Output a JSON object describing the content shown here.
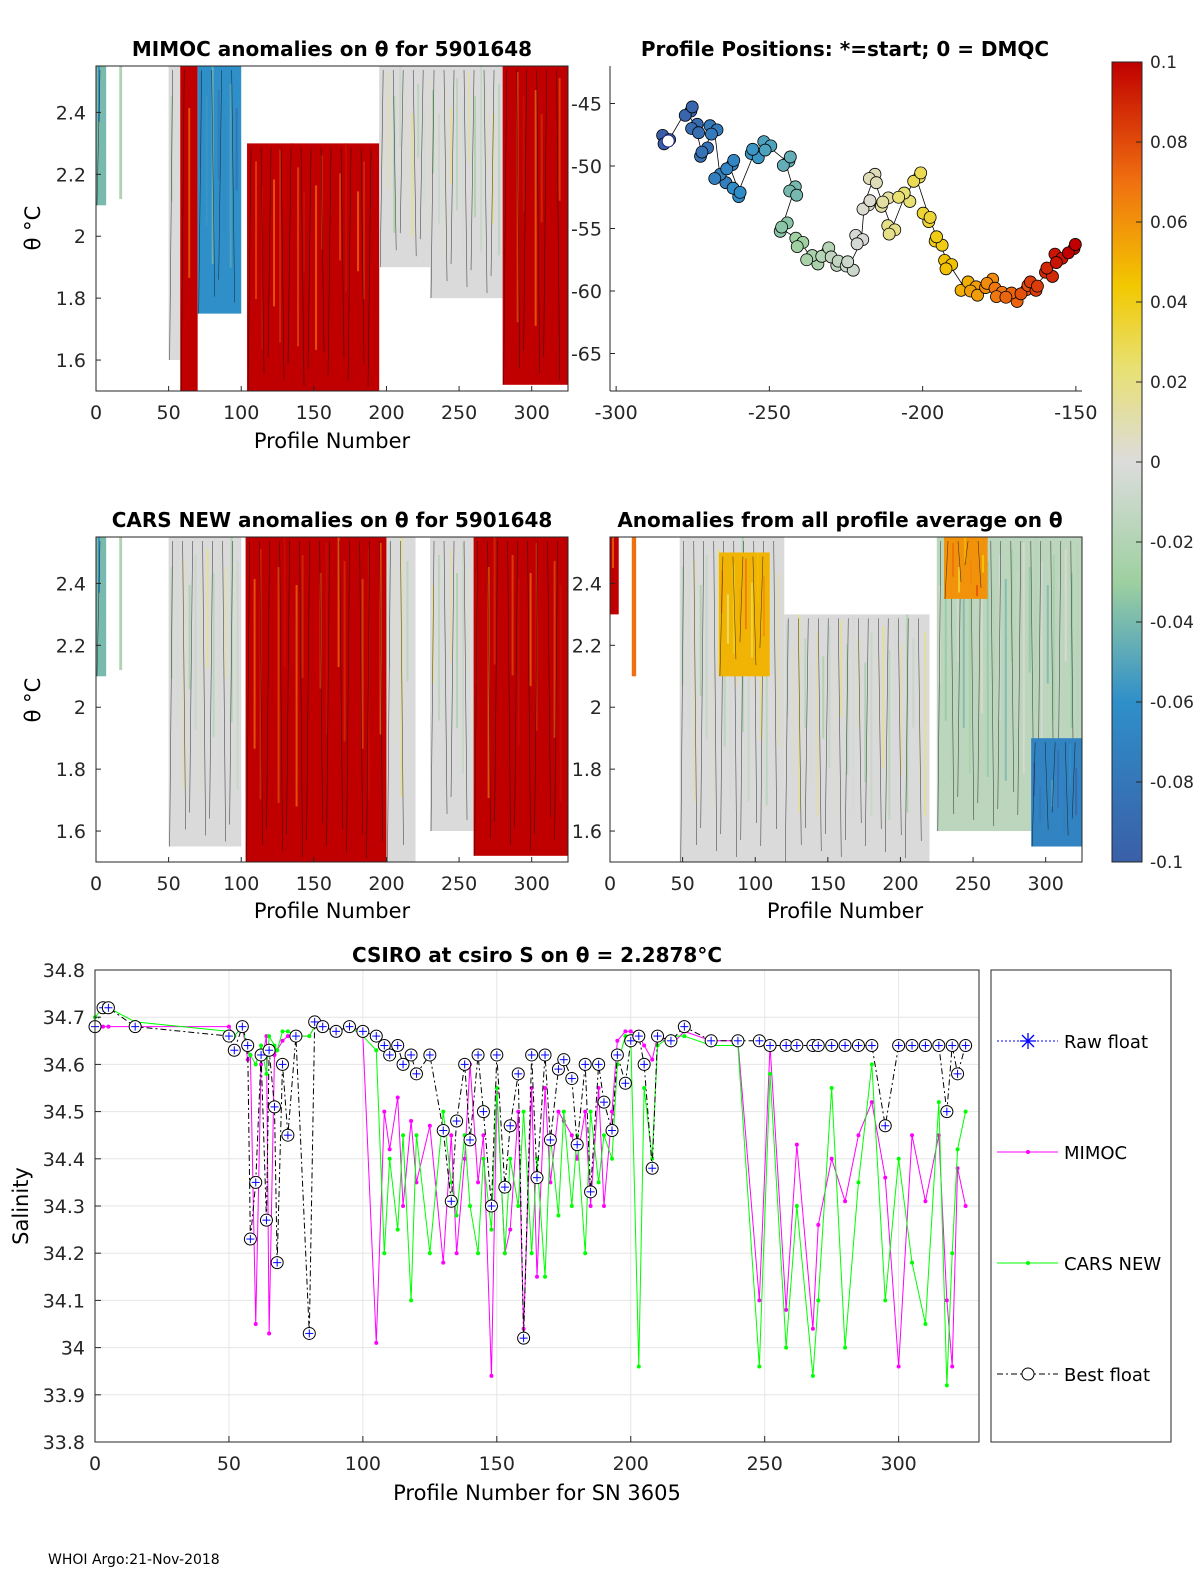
{
  "footer": "WHOI Argo:21-Nov-2018",
  "colors": {
    "mimoc": "#ff00ff",
    "cars": "#00ff00",
    "raw": "#0000ff",
    "best": "#000000",
    "anom_pos": "#c00000",
    "anom_neg": "#3a5fa8",
    "anom_zero": "#d9d9d9"
  },
  "chart_data": [
    {
      "id": "mimoc_anom",
      "type": "heatmap",
      "title": "MIMOC anomalies on θ  for 5901648",
      "xlabel": "Profile Number",
      "ylabel": "θ °C",
      "xlim": [
        0,
        325
      ],
      "ylim": [
        1.5,
        2.55
      ],
      "xticks": [
        0,
        50,
        100,
        150,
        200,
        250,
        300
      ],
      "yticks": [
        1.6,
        1.8,
        2.0,
        2.2,
        2.4
      ],
      "ytick_labels": [
        "1.6",
        "1.8",
        "2",
        "2.2",
        "2.4"
      ],
      "columns": [
        {
          "x": [
            0,
            7
          ],
          "top": 2.55,
          "bottom": 2.1,
          "v": -0.04
        },
        {
          "x": [
            16,
            18
          ],
          "top": 2.55,
          "bottom": 2.12,
          "v": -0.02
        },
        {
          "x": [
            50,
            58
          ],
          "top": 2.55,
          "bottom": 1.6,
          "v": 0.0
        },
        {
          "x": [
            58,
            70
          ],
          "top": 2.55,
          "bottom": 1.5,
          "v": 0.1
        },
        {
          "x": [
            70,
            100
          ],
          "top": 2.55,
          "bottom": 1.75,
          "v": -0.06
        },
        {
          "x": [
            104,
            195
          ],
          "top": 2.3,
          "bottom": 1.5,
          "v": 0.1
        },
        {
          "x": [
            195,
            235
          ],
          "top": 2.55,
          "bottom": 1.9,
          "v": 0.0
        },
        {
          "x": [
            230,
            280
          ],
          "top": 2.55,
          "bottom": 1.8,
          "v": 0.0
        },
        {
          "x": [
            280,
            325
          ],
          "top": 2.55,
          "bottom": 1.52,
          "v": 0.1
        }
      ]
    },
    {
      "id": "positions",
      "type": "scatter",
      "title": "Profile Positions: *=start; 0 = DMQC",
      "xlim": [
        -302,
        -148
      ],
      "ylim": [
        -68,
        -42
      ],
      "xticks": [
        -300,
        -250,
        -200,
        -150
      ],
      "yticks": [
        -65,
        -60,
        -55,
        -50,
        -45
      ],
      "track": [
        [
          -283,
          -48
        ],
        [
          -277,
          -45.5
        ],
        [
          -274,
          -47
        ],
        [
          -272,
          -49
        ],
        [
          -268,
          -47
        ],
        [
          -266,
          -51
        ],
        [
          -263,
          -50
        ],
        [
          -260,
          -52
        ],
        [
          -255,
          -49
        ],
        [
          -250,
          -48.5
        ],
        [
          -245,
          -49.5
        ],
        [
          -242,
          -52
        ],
        [
          -246,
          -55
        ],
        [
          -240,
          -56
        ],
        [
          -236,
          -57.5
        ],
        [
          -232,
          -57
        ],
        [
          -228,
          -57.5
        ],
        [
          -224,
          -58
        ],
        [
          -220,
          -56
        ],
        [
          -219,
          -53
        ],
        [
          -216,
          -51
        ],
        [
          -213,
          -53
        ],
        [
          -210,
          -55
        ],
        [
          -206,
          -52.5
        ],
        [
          -202,
          -51
        ],
        [
          -198,
          -54
        ],
        [
          -195,
          -56
        ],
        [
          -191,
          -58
        ],
        [
          -187,
          -59.5
        ],
        [
          -183,
          -60
        ],
        [
          -179,
          -59.5
        ],
        [
          -175,
          -60
        ],
        [
          -171,
          -60.5
        ],
        [
          -167,
          -60
        ],
        [
          -163,
          -59.5
        ],
        [
          -159,
          -58.5
        ],
        [
          -155,
          -57.5
        ],
        [
          -152,
          -56.5
        ]
      ],
      "colorbar": {
        "min": -0.1,
        "max": 0.1,
        "ticks": [
          "0.1",
          "0.08",
          "0.06",
          "0.04",
          "0.02",
          "0",
          "-0.02",
          "-0.04",
          "-0.06",
          "-0.08",
          "-0.1"
        ]
      }
    },
    {
      "id": "cars_anom",
      "type": "heatmap",
      "title": "CARS NEW anomalies on θ for 5901648",
      "xlabel": "Profile Number",
      "ylabel": "θ °C",
      "xlim": [
        0,
        325
      ],
      "ylim": [
        1.5,
        2.55
      ],
      "xticks": [
        0,
        50,
        100,
        150,
        200,
        250,
        300
      ],
      "yticks": [
        1.6,
        1.8,
        2.0,
        2.2,
        2.4
      ],
      "ytick_labels": [
        "1.6",
        "1.8",
        "2",
        "2.2",
        "2.4"
      ],
      "columns": [
        {
          "x": [
            0,
            7
          ],
          "top": 2.55,
          "bottom": 2.1,
          "v": -0.04
        },
        {
          "x": [
            16,
            18
          ],
          "top": 2.55,
          "bottom": 2.12,
          "v": -0.02
        },
        {
          "x": [
            50,
            100
          ],
          "top": 2.55,
          "bottom": 1.55,
          "v": 0.0
        },
        {
          "x": [
            103,
            200
          ],
          "top": 2.55,
          "bottom": 1.5,
          "v": 0.1
        },
        {
          "x": [
            200,
            220
          ],
          "top": 2.55,
          "bottom": 1.5,
          "v": 0.0
        },
        {
          "x": [
            230,
            260
          ],
          "top": 2.55,
          "bottom": 1.6,
          "v": 0.0
        },
        {
          "x": [
            260,
            325
          ],
          "top": 2.55,
          "bottom": 1.52,
          "v": 0.1
        }
      ]
    },
    {
      "id": "avg_anom",
      "type": "heatmap",
      "title": "Anomalies from all profile average on θ",
      "xlabel": "Profile Number",
      "xlim": [
        0,
        325
      ],
      "ylim": [
        1.5,
        2.55
      ],
      "xticks": [
        0,
        50,
        100,
        150,
        200,
        250,
        300
      ],
      "yticks": [
        1.6,
        1.8,
        2.0,
        2.2,
        2.4
      ],
      "ytick_labels": [
        "1.6",
        "1.8",
        "2",
        "2.2",
        "2.4"
      ],
      "columns": [
        {
          "x": [
            0,
            6
          ],
          "top": 2.55,
          "bottom": 2.3,
          "v": 0.1
        },
        {
          "x": [
            15,
            18
          ],
          "top": 2.55,
          "bottom": 2.1,
          "v": 0.07
        },
        {
          "x": [
            48,
            120
          ],
          "top": 2.55,
          "bottom": 1.5,
          "v": 0.0
        },
        {
          "x": [
            75,
            110
          ],
          "top": 2.5,
          "bottom": 2.1,
          "v": 0.05
        },
        {
          "x": [
            120,
            220
          ],
          "top": 2.3,
          "bottom": 1.5,
          "v": 0.0
        },
        {
          "x": [
            225,
            325
          ],
          "top": 2.55,
          "bottom": 1.6,
          "v": -0.015
        },
        {
          "x": [
            230,
            260
          ],
          "top": 2.55,
          "bottom": 2.35,
          "v": 0.06
        },
        {
          "x": [
            290,
            325
          ],
          "top": 1.9,
          "bottom": 1.55,
          "v": -0.07
        }
      ]
    },
    {
      "id": "salinity",
      "type": "line",
      "title": "CSIRO at csiro S on θ = 2.2878°C",
      "xlabel": "Profile Number for SN 3605",
      "ylabel": "Salinity",
      "xlim": [
        0,
        330
      ],
      "ylim": [
        33.8,
        34.8
      ],
      "xticks": [
        0,
        50,
        100,
        150,
        200,
        250,
        300
      ],
      "yticks": [
        "33.8",
        "33.9",
        "34",
        "34.1",
        "34.2",
        "34.3",
        "34.4",
        "34.5",
        "34.6",
        "34.7",
        "34.8"
      ],
      "legend": [
        "Raw float",
        "MIMOC",
        "CARS NEW",
        "Best float"
      ],
      "x": [
        0,
        3,
        5,
        15,
        50,
        52,
        55,
        57,
        58,
        60,
        62,
        64,
        65,
        67,
        68,
        70,
        72,
        75,
        80,
        82,
        85,
        90,
        95,
        100,
        105,
        108,
        110,
        113,
        115,
        118,
        120,
        125,
        130,
        133,
        135,
        138,
        140,
        143,
        145,
        148,
        150,
        153,
        155,
        158,
        160,
        163,
        165,
        168,
        170,
        173,
        175,
        178,
        180,
        183,
        185,
        188,
        190,
        193,
        195,
        198,
        200,
        203,
        205,
        208,
        210,
        215,
        220,
        230,
        240,
        248,
        252,
        258,
        262,
        268,
        270,
        275,
        280,
        285,
        290,
        295,
        300,
        305,
        310,
        315,
        318,
        320,
        322,
        325
      ],
      "series": [
        {
          "name": "Best float",
          "values": [
            34.68,
            34.72,
            34.72,
            34.68,
            34.66,
            34.63,
            34.68,
            34.64,
            34.23,
            34.35,
            34.62,
            34.27,
            34.63,
            34.51,
            34.18,
            34.6,
            34.45,
            34.66,
            34.03,
            34.69,
            34.68,
            34.67,
            34.68,
            34.67,
            34.66,
            34.64,
            34.62,
            34.64,
            34.6,
            34.62,
            34.58,
            34.62,
            34.46,
            34.31,
            34.48,
            34.6,
            34.44,
            34.62,
            34.5,
            34.3,
            34.62,
            34.34,
            34.47,
            34.58,
            34.02,
            34.62,
            34.36,
            34.62,
            34.44,
            34.59,
            34.61,
            34.57,
            34.43,
            34.6,
            34.33,
            34.6,
            34.52,
            34.46,
            34.62,
            34.56,
            34.65,
            34.66,
            34.6,
            34.38,
            34.66,
            34.65,
            34.68,
            34.65,
            34.65,
            34.65,
            34.64,
            34.64,
            34.64,
            34.64,
            34.64,
            34.64,
            34.64,
            34.64,
            34.64,
            34.47,
            34.64,
            34.64,
            34.64,
            34.64,
            34.5,
            34.64,
            34.58,
            34.64
          ]
        },
        {
          "name": "MIMOC",
          "values": [
            34.68,
            34.68,
            34.68,
            34.68,
            34.68,
            34.66,
            34.68,
            34.61,
            34.62,
            34.05,
            34.6,
            34.66,
            34.03,
            34.62,
            34.63,
            34.65,
            34.66,
            34.66,
            34.66,
            34.68,
            34.68,
            34.67,
            34.68,
            34.66,
            34.01,
            34.5,
            34.42,
            34.53,
            34.3,
            34.48,
            34.35,
            34.47,
            34.18,
            34.45,
            34.2,
            34.4,
            34.6,
            34.35,
            34.45,
            33.94,
            34.54,
            34.2,
            34.25,
            34.5,
            34.04,
            34.55,
            34.15,
            34.55,
            34.35,
            34.5,
            34.48,
            34.45,
            34.4,
            34.5,
            34.3,
            34.55,
            34.3,
            34.5,
            34.65,
            34.67,
            34.67,
            34.66,
            34.64,
            34.61,
            34.66,
            34.64,
            34.67,
            34.65,
            34.65,
            34.1,
            34.64,
            34.08,
            34.43,
            34.04,
            34.26,
            34.4,
            34.31,
            34.45,
            34.52,
            34.36,
            33.96,
            34.45,
            34.31,
            34.45,
            34.1,
            33.96,
            34.38,
            34.3
          ]
        },
        {
          "name": "CARS NEW",
          "values": [
            34.7,
            34.72,
            34.72,
            34.69,
            34.67,
            34.66,
            34.68,
            34.63,
            34.62,
            34.6,
            34.64,
            34.58,
            34.66,
            34.64,
            34.63,
            34.67,
            34.67,
            34.66,
            34.66,
            34.68,
            34.68,
            34.67,
            34.68,
            34.66,
            34.63,
            34.2,
            34.4,
            34.25,
            34.45,
            34.1,
            34.45,
            34.2,
            34.5,
            34.35,
            34.28,
            34.45,
            34.3,
            34.2,
            34.4,
            34.25,
            34.55,
            34.2,
            34.4,
            34.3,
            34.5,
            34.2,
            34.4,
            34.15,
            34.45,
            34.28,
            34.5,
            34.3,
            34.45,
            34.2,
            34.5,
            34.35,
            34.45,
            34.4,
            34.6,
            34.66,
            34.66,
            33.96,
            34.55,
            34.4,
            34.64,
            34.66,
            34.66,
            34.64,
            34.64,
            33.96,
            34.58,
            34.0,
            34.3,
            33.94,
            34.1,
            34.55,
            34.0,
            34.35,
            34.6,
            34.1,
            34.4,
            34.18,
            34.05,
            34.52,
            33.92,
            34.2,
            34.42,
            34.5
          ]
        }
      ]
    }
  ]
}
